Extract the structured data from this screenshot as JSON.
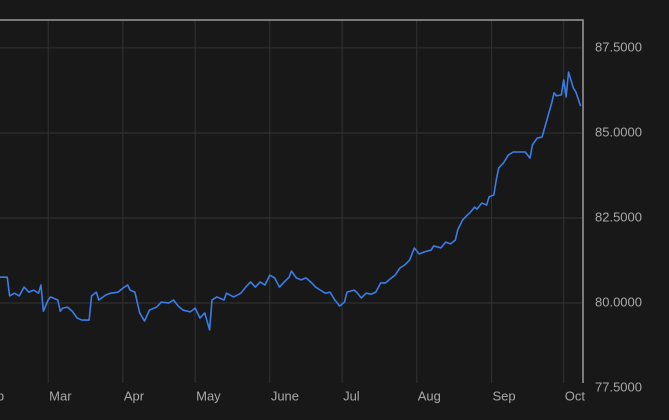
{
  "chart_data": {
    "type": "line",
    "x": [
      8,
      11,
      12,
      14,
      16,
      18,
      20,
      22,
      24,
      25,
      26,
      28,
      29,
      32,
      33,
      34,
      36,
      38,
      40,
      42,
      45,
      46,
      48,
      49,
      52,
      54,
      57,
      59,
      61,
      62,
      64,
      66,
      68,
      70,
      73,
      75,
      78,
      80,
      82,
      84,
      87,
      89,
      91,
      93,
      95,
      96,
      98,
      101,
      102,
      105,
      108,
      110,
      112,
      114,
      116,
      118,
      120,
      122,
      124,
      126,
      128,
      129,
      131,
      133,
      135,
      137,
      139,
      141,
      143,
      145,
      147,
      149,
      151,
      152,
      155,
      156,
      158,
      160,
      162,
      164,
      166,
      168,
      170,
      172,
      174,
      176,
      178,
      180,
      182,
      184,
      187,
      188,
      191,
      193,
      195,
      197,
      198,
      200,
      202,
      203,
      205,
      206,
      208,
      210,
      211,
      213,
      214,
      215,
      217,
      219,
      221,
      224,
      226,
      228,
      229,
      231,
      233,
      235,
      237,
      238,
      239,
      241,
      242,
      243,
      244,
      246,
      247,
      249
    ],
    "series": [
      {
        "color": "#3b7de6",
        "values": [
          80.76,
          80.76,
          80.21,
          80.29,
          80.21,
          80.47,
          80.32,
          80.38,
          80.29,
          80.53,
          79.76,
          80.09,
          80.18,
          80.09,
          79.76,
          79.85,
          79.88,
          79.76,
          79.56,
          79.5,
          79.5,
          80.21,
          80.32,
          80.09,
          80.24,
          80.29,
          80.32,
          80.44,
          80.53,
          80.38,
          80.32,
          79.71,
          79.47,
          79.79,
          79.88,
          80.03,
          80.0,
          80.09,
          79.91,
          79.79,
          79.74,
          79.85,
          79.56,
          79.71,
          79.21,
          80.09,
          80.18,
          80.09,
          80.29,
          80.18,
          80.29,
          80.47,
          80.62,
          80.47,
          80.62,
          80.53,
          80.82,
          80.74,
          80.47,
          80.62,
          80.76,
          80.94,
          80.74,
          80.68,
          80.74,
          80.62,
          80.47,
          80.38,
          80.29,
          80.32,
          80.09,
          79.91,
          80.03,
          80.32,
          80.38,
          80.32,
          80.15,
          80.29,
          80.26,
          80.32,
          80.59,
          80.59,
          80.71,
          80.82,
          81.03,
          81.12,
          81.26,
          81.62,
          81.44,
          81.5,
          81.56,
          81.68,
          81.62,
          81.79,
          81.74,
          81.85,
          82.15,
          82.44,
          82.59,
          82.65,
          82.82,
          82.76,
          82.94,
          82.88,
          83.12,
          83.18,
          83.62,
          83.97,
          84.12,
          84.35,
          84.44,
          84.44,
          84.44,
          84.26,
          84.65,
          84.85,
          84.88,
          85.38,
          85.88,
          86.18,
          86.09,
          86.12,
          86.56,
          86.06,
          86.79,
          86.32,
          86.21,
          85.79
        ]
      }
    ],
    "xlim": [
      8,
      250
    ],
    "xticks": [
      {
        "value": 0,
        "label": "Feb"
      },
      {
        "value": 28,
        "label": "Mar"
      },
      {
        "value": 59,
        "label": "Apr"
      },
      {
        "value": 89,
        "label": "May"
      },
      {
        "value": 120,
        "label": "June"
      },
      {
        "value": 150,
        "label": "Jul"
      },
      {
        "value": 181,
        "label": "Aug"
      },
      {
        "value": 212,
        "label": "Sep"
      },
      {
        "value": 242,
        "label": "Oct"
      }
    ],
    "ylim": [
      77.65,
      88.32
    ],
    "yticks": [
      {
        "value": 77.5,
        "label": "77.5000"
      },
      {
        "value": 80,
        "label": "80.0000"
      },
      {
        "value": 82.5,
        "label": "82.5000"
      },
      {
        "value": 85,
        "label": "85.0000"
      },
      {
        "value": 87.5,
        "label": "87.5000"
      }
    ],
    "grid": true
  }
}
